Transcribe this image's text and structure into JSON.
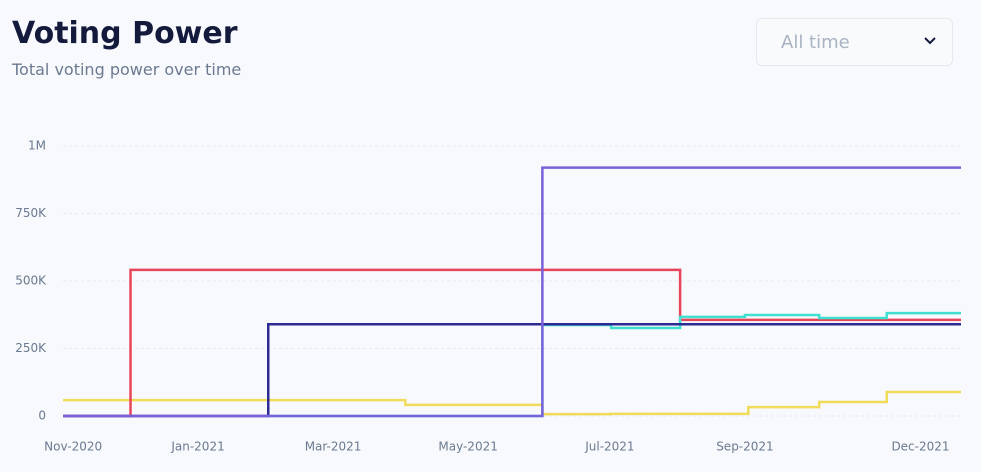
{
  "header": {
    "title": "Voting Power",
    "subtitle": "Total voting power over time",
    "range_select": "All time"
  },
  "chart_data": {
    "type": "line",
    "step": "post",
    "xlim": [
      0,
      13.3
    ],
    "xticks": [
      {
        "value": 0.15,
        "label": "Nov-2020"
      },
      {
        "value": 2,
        "label": "Jan-2021"
      },
      {
        "value": 4,
        "label": "Mar-2021"
      },
      {
        "value": 6,
        "label": "May-2021"
      },
      {
        "value": 8.1,
        "label": "Jul-2021"
      },
      {
        "value": 10.1,
        "label": "Sep-2021"
      },
      {
        "value": 12.7,
        "label": "Dec-2021"
      }
    ],
    "ylim": [
      0,
      1000000
    ],
    "yticks": [
      {
        "value": 0,
        "label": "0"
      },
      {
        "value": 250000,
        "label": "250K"
      },
      {
        "value": 500000,
        "label": "500K"
      },
      {
        "value": 750000,
        "label": "750K"
      },
      {
        "value": 1000000,
        "label": "1M"
      }
    ],
    "grid": true,
    "series": [
      {
        "color": "#f0dc5a",
        "x": [
          0,
          5.07,
          7.1,
          8.1,
          10.15,
          11.2,
          12.2
        ],
        "values": [
          59000,
          41000,
          7000,
          8000,
          33000,
          52000,
          89000
        ]
      },
      {
        "color": "#e8445a",
        "x": [
          0,
          1.0,
          9.14
        ],
        "values": [
          0,
          541000,
          356000
        ]
      },
      {
        "color": "#40e0d0",
        "x": [
          3.04,
          7.1,
          8.12,
          9.14,
          10.1,
          11.2,
          12.2
        ],
        "values": [
          0,
          337000,
          326000,
          367000,
          374000,
          363000,
          381000
        ]
      },
      {
        "color": "#2e2a94",
        "x": [
          0,
          3.04
        ],
        "values": [
          0,
          340000
        ]
      },
      {
        "color": "#7b61d9",
        "x": [
          0,
          7.1
        ],
        "values": [
          0,
          920000
        ]
      }
    ]
  }
}
